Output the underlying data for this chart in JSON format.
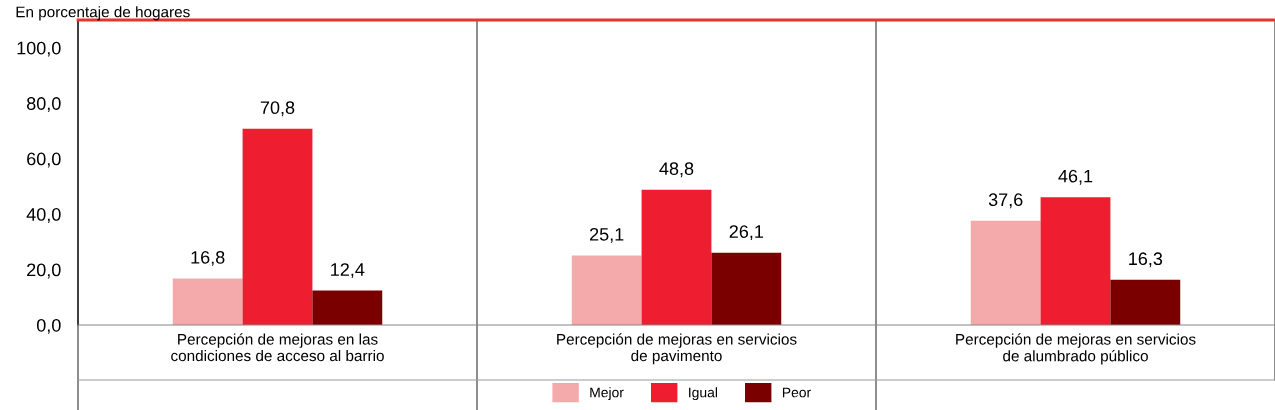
{
  "chart_data": {
    "type": "bar",
    "subtitle": "En porcentaje de hogares",
    "categories": [
      "Percepción de mejoras en las\ncondiciones de acceso al barrio",
      "Percepción de mejoras en servicios\nde pavimento",
      "Percepción de mejoras en servicios\nde alumbrado público"
    ],
    "series": [
      {
        "name": "Mejor",
        "color": "#f4a9ab",
        "values": [
          16.8,
          25.1,
          37.6
        ],
        "value_labels": [
          "16,8",
          "25,1",
          "37,6"
        ]
      },
      {
        "name": "Igual",
        "color": "#ee1d2f",
        "values": [
          70.8,
          48.8,
          46.1
        ],
        "value_labels": [
          "70,8",
          "48,8",
          "46,1"
        ]
      },
      {
        "name": "Peor",
        "color": "#7a0000",
        "values": [
          12.4,
          26.1,
          16.3
        ],
        "value_labels": [
          "12,4",
          "26,1",
          "16,3"
        ]
      }
    ],
    "ylim": [
      0,
      110
    ],
    "yticks": [
      {
        "value": 0,
        "label": "0,0"
      },
      {
        "value": 20,
        "label": "20,0"
      },
      {
        "value": 40,
        "label": "40,0"
      },
      {
        "value": 60,
        "label": "60,0"
      },
      {
        "value": 80,
        "label": "80,0"
      },
      {
        "value": 100,
        "label": "100,0"
      }
    ],
    "grid": false,
    "legend": "bottom"
  }
}
